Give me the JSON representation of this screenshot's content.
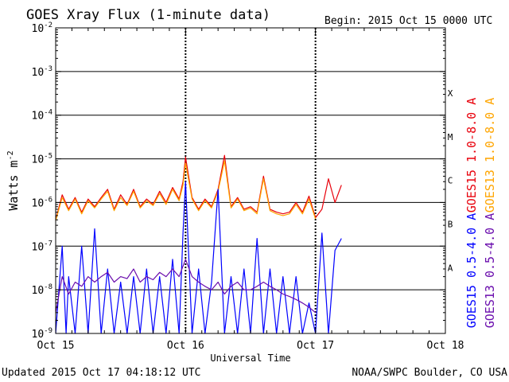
{
  "chart_data": {
    "type": "line",
    "title": "GOES Xray Flux (1-minute data)",
    "begin_label": "Begin:  2015 Oct 15 0000 UTC",
    "xlabel": "Universal Time",
    "ylabel": "Watts m",
    "ylabel_exp": "-2",
    "x_unit": "days since 2015 Oct 15 0000 UTC",
    "xlim": [
      0,
      3
    ],
    "x_ticks": [
      {
        "value": 0,
        "label": "Oct 15"
      },
      {
        "value": 1,
        "label": "Oct 16"
      },
      {
        "value": 2,
        "label": "Oct 17"
      },
      {
        "value": 3,
        "label": "Oct 18"
      }
    ],
    "y_scale": "log",
    "ylim": [
      1e-09,
      0.01
    ],
    "y_ticks": [
      {
        "value": 1e-09,
        "base": "10",
        "exp": "-9"
      },
      {
        "value": 1e-08,
        "base": "10",
        "exp": "-8"
      },
      {
        "value": 1e-07,
        "base": "10",
        "exp": "-7"
      },
      {
        "value": 1e-06,
        "base": "10",
        "exp": "-6"
      },
      {
        "value": 1e-05,
        "base": "10",
        "exp": "-5"
      },
      {
        "value": 0.0001,
        "base": "10",
        "exp": "-4"
      },
      {
        "value": 0.001,
        "base": "10",
        "exp": "-3"
      },
      {
        "value": 0.01,
        "base": "10",
        "exp": "-2"
      }
    ],
    "flare_classes": [
      {
        "label": "A",
        "value": 3.2e-08
      },
      {
        "label": "B",
        "value": 3.2e-07
      },
      {
        "label": "C",
        "value": 3.2e-06
      },
      {
        "label": "M",
        "value": 3.2e-05
      },
      {
        "label": "X",
        "value": 0.00032
      }
    ],
    "gridlines_y": [
      1e-08,
      1e-07,
      1e-06,
      1e-05,
      0.0001,
      0.001
    ],
    "day_markers": [
      1,
      2
    ],
    "series": [
      {
        "name": "GOES15 1.0-8.0 A",
        "color": "#e8000b",
        "x": [
          0,
          0.05,
          0.1,
          0.15,
          0.2,
          0.25,
          0.3,
          0.35,
          0.4,
          0.45,
          0.5,
          0.55,
          0.6,
          0.65,
          0.7,
          0.75,
          0.8,
          0.85,
          0.9,
          0.95,
          0.98,
          1.0,
          1.05,
          1.1,
          1.15,
          1.2,
          1.25,
          1.3,
          1.35,
          1.4,
          1.45,
          1.5,
          1.55,
          1.6,
          1.65,
          1.7,
          1.75,
          1.8,
          1.85,
          1.9,
          1.95,
          2.0,
          2.05,
          2.1,
          2.15,
          2.2
        ],
        "y": [
          4e-07,
          1.5e-06,
          7e-07,
          1.3e-06,
          6e-07,
          1.2e-06,
          8e-07,
          1.3e-06,
          2e-06,
          7e-07,
          1.5e-06,
          9e-07,
          2e-06,
          8e-07,
          1.2e-06,
          9e-07,
          1.8e-06,
          1e-06,
          2.2e-06,
          1.2e-06,
          3e-06,
          1.1e-05,
          1.3e-06,
          7e-07,
          1.2e-06,
          8e-07,
          2e-06,
          1.2e-05,
          8e-07,
          1.3e-06,
          7e-07,
          8e-07,
          6e-07,
          4e-06,
          7e-07,
          6e-07,
          5.5e-07,
          6e-07,
          1e-06,
          6e-07,
          1.4e-06,
          4.5e-07,
          7e-07,
          3.5e-06,
          1e-06,
          2.5e-06
        ]
      },
      {
        "name": "GOES13 1.0-8.0 A",
        "color": "#ffa500",
        "x": [
          0,
          0.05,
          0.1,
          0.15,
          0.2,
          0.25,
          0.3,
          0.35,
          0.4,
          0.45,
          0.5,
          0.55,
          0.6,
          0.65,
          0.7,
          0.75,
          0.8,
          0.85,
          0.9,
          0.95,
          0.98,
          1.0,
          1.05,
          1.1,
          1.15,
          1.2,
          1.25,
          1.3,
          1.35,
          1.4,
          1.45,
          1.5,
          1.55,
          1.6,
          1.65,
          1.7,
          1.75,
          1.8,
          1.85,
          1.9,
          1.95,
          2.0
        ],
        "y": [
          3.8e-07,
          1.3e-06,
          6.5e-07,
          1.2e-06,
          5.5e-07,
          1.1e-06,
          7.5e-07,
          1.2e-06,
          1.8e-06,
          6.5e-07,
          1.3e-06,
          8.5e-07,
          1.8e-06,
          7.5e-07,
          1.1e-06,
          8.5e-07,
          1.6e-06,
          9e-07,
          2e-06,
          1.1e-06,
          2.5e-06,
          8e-06,
          1.2e-06,
          6.5e-07,
          1.1e-06,
          7.5e-07,
          1.8e-06,
          9e-06,
          7.5e-07,
          1.2e-06,
          6.5e-07,
          7.5e-07,
          5.5e-07,
          3.5e-06,
          6.5e-07,
          5.5e-07,
          5e-07,
          5.5e-07,
          9e-07,
          5.5e-07,
          1.2e-06,
          4.2e-07
        ]
      },
      {
        "name": "GOES15 0.5-4.0 A",
        "color": "#0000ff",
        "x": [
          0,
          0.05,
          0.08,
          0.1,
          0.15,
          0.2,
          0.25,
          0.3,
          0.35,
          0.4,
          0.45,
          0.5,
          0.55,
          0.6,
          0.65,
          0.7,
          0.75,
          0.8,
          0.85,
          0.9,
          0.95,
          0.98,
          1.0,
          1.05,
          1.1,
          1.15,
          1.2,
          1.25,
          1.3,
          1.35,
          1.4,
          1.45,
          1.5,
          1.55,
          1.6,
          1.65,
          1.7,
          1.75,
          1.8,
          1.85,
          1.9,
          1.95,
          2.0,
          2.05,
          2.1,
          2.15,
          2.2
        ],
        "y": [
          1e-09,
          1e-07,
          1e-09,
          2e-08,
          1e-09,
          1e-07,
          1e-09,
          2.5e-07,
          1e-09,
          3e-08,
          1e-09,
          1.5e-08,
          1e-09,
          2e-08,
          1e-09,
          3e-08,
          1e-09,
          2e-08,
          1e-09,
          5e-08,
          1e-09,
          2e-07,
          3e-06,
          1e-09,
          3e-08,
          1e-09,
          1.5e-08,
          2e-06,
          1e-09,
          2e-08,
          1e-09,
          3e-08,
          1e-09,
          1.5e-07,
          1e-09,
          3e-08,
          1e-09,
          2e-08,
          1e-09,
          2e-08,
          1e-09,
          5e-09,
          1e-09,
          2e-07,
          1e-09,
          8e-08,
          1.5e-07
        ]
      },
      {
        "name": "GOES13 0.5-4.0 A",
        "color": "#6a0dad",
        "x": [
          0,
          0.05,
          0.1,
          0.15,
          0.2,
          0.25,
          0.3,
          0.35,
          0.4,
          0.45,
          0.5,
          0.55,
          0.6,
          0.65,
          0.7,
          0.75,
          0.8,
          0.85,
          0.9,
          0.95,
          1.0,
          1.05,
          1.1,
          1.15,
          1.2,
          1.25,
          1.3,
          1.35,
          1.4,
          1.45,
          1.5,
          1.55,
          1.6,
          1.65,
          1.7,
          1.75,
          1.8,
          1.85,
          1.9,
          1.95,
          2.0
        ],
        "y": [
          3e-09,
          2e-08,
          8e-09,
          1.5e-08,
          1.2e-08,
          2e-08,
          1.5e-08,
          2e-08,
          2.5e-08,
          1.5e-08,
          2e-08,
          1.8e-08,
          3e-08,
          1.5e-08,
          2e-08,
          1.7e-08,
          2.5e-08,
          2e-08,
          3e-08,
          2e-08,
          5e-08,
          2e-08,
          1.5e-08,
          1.2e-08,
          1e-08,
          1.5e-08,
          8e-09,
          1.2e-08,
          1.5e-08,
          1e-08,
          1e-08,
          1.2e-08,
          1.5e-08,
          1.2e-08,
          1e-08,
          8e-09,
          7e-09,
          6e-09,
          5e-09,
          4e-09,
          3e-09
        ]
      }
    ]
  },
  "footer": {
    "updated": "Updated 2015 Oct 17 04:18:12 UTC",
    "source": "NOAA/SWPC Boulder, CO USA"
  }
}
